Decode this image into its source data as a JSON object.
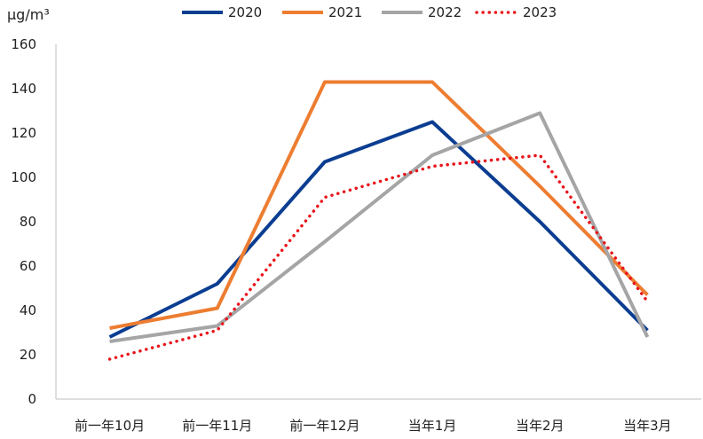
{
  "chart_data": {
    "type": "line",
    "unit": "μg/m³",
    "categories": [
      "前一年10月",
      "前一年11月",
      "前一年12月",
      "当年1月",
      "当年2月",
      "当年3月"
    ],
    "ylim": [
      0,
      160
    ],
    "yticks": [
      "0",
      "20",
      "40",
      "60",
      "80",
      "100",
      "120",
      "140",
      "160"
    ],
    "grid": false,
    "legend_position": "top",
    "series": [
      {
        "name": "2020",
        "values": [
          28,
          52,
          107,
          125,
          80,
          31
        ],
        "color": "#0B3D91",
        "style": "solid"
      },
      {
        "name": "2021",
        "values": [
          32,
          41,
          143,
          143,
          96,
          47
        ],
        "color": "#ED7D31",
        "style": "solid"
      },
      {
        "name": "2022",
        "values": [
          26,
          33,
          71,
          110,
          129,
          28
        ],
        "color": "#A5A5A5",
        "style": "solid"
      },
      {
        "name": "2023",
        "values": [
          18,
          31,
          91,
          105,
          110,
          44
        ],
        "color": "#E8141B",
        "style": "dotted"
      }
    ]
  }
}
